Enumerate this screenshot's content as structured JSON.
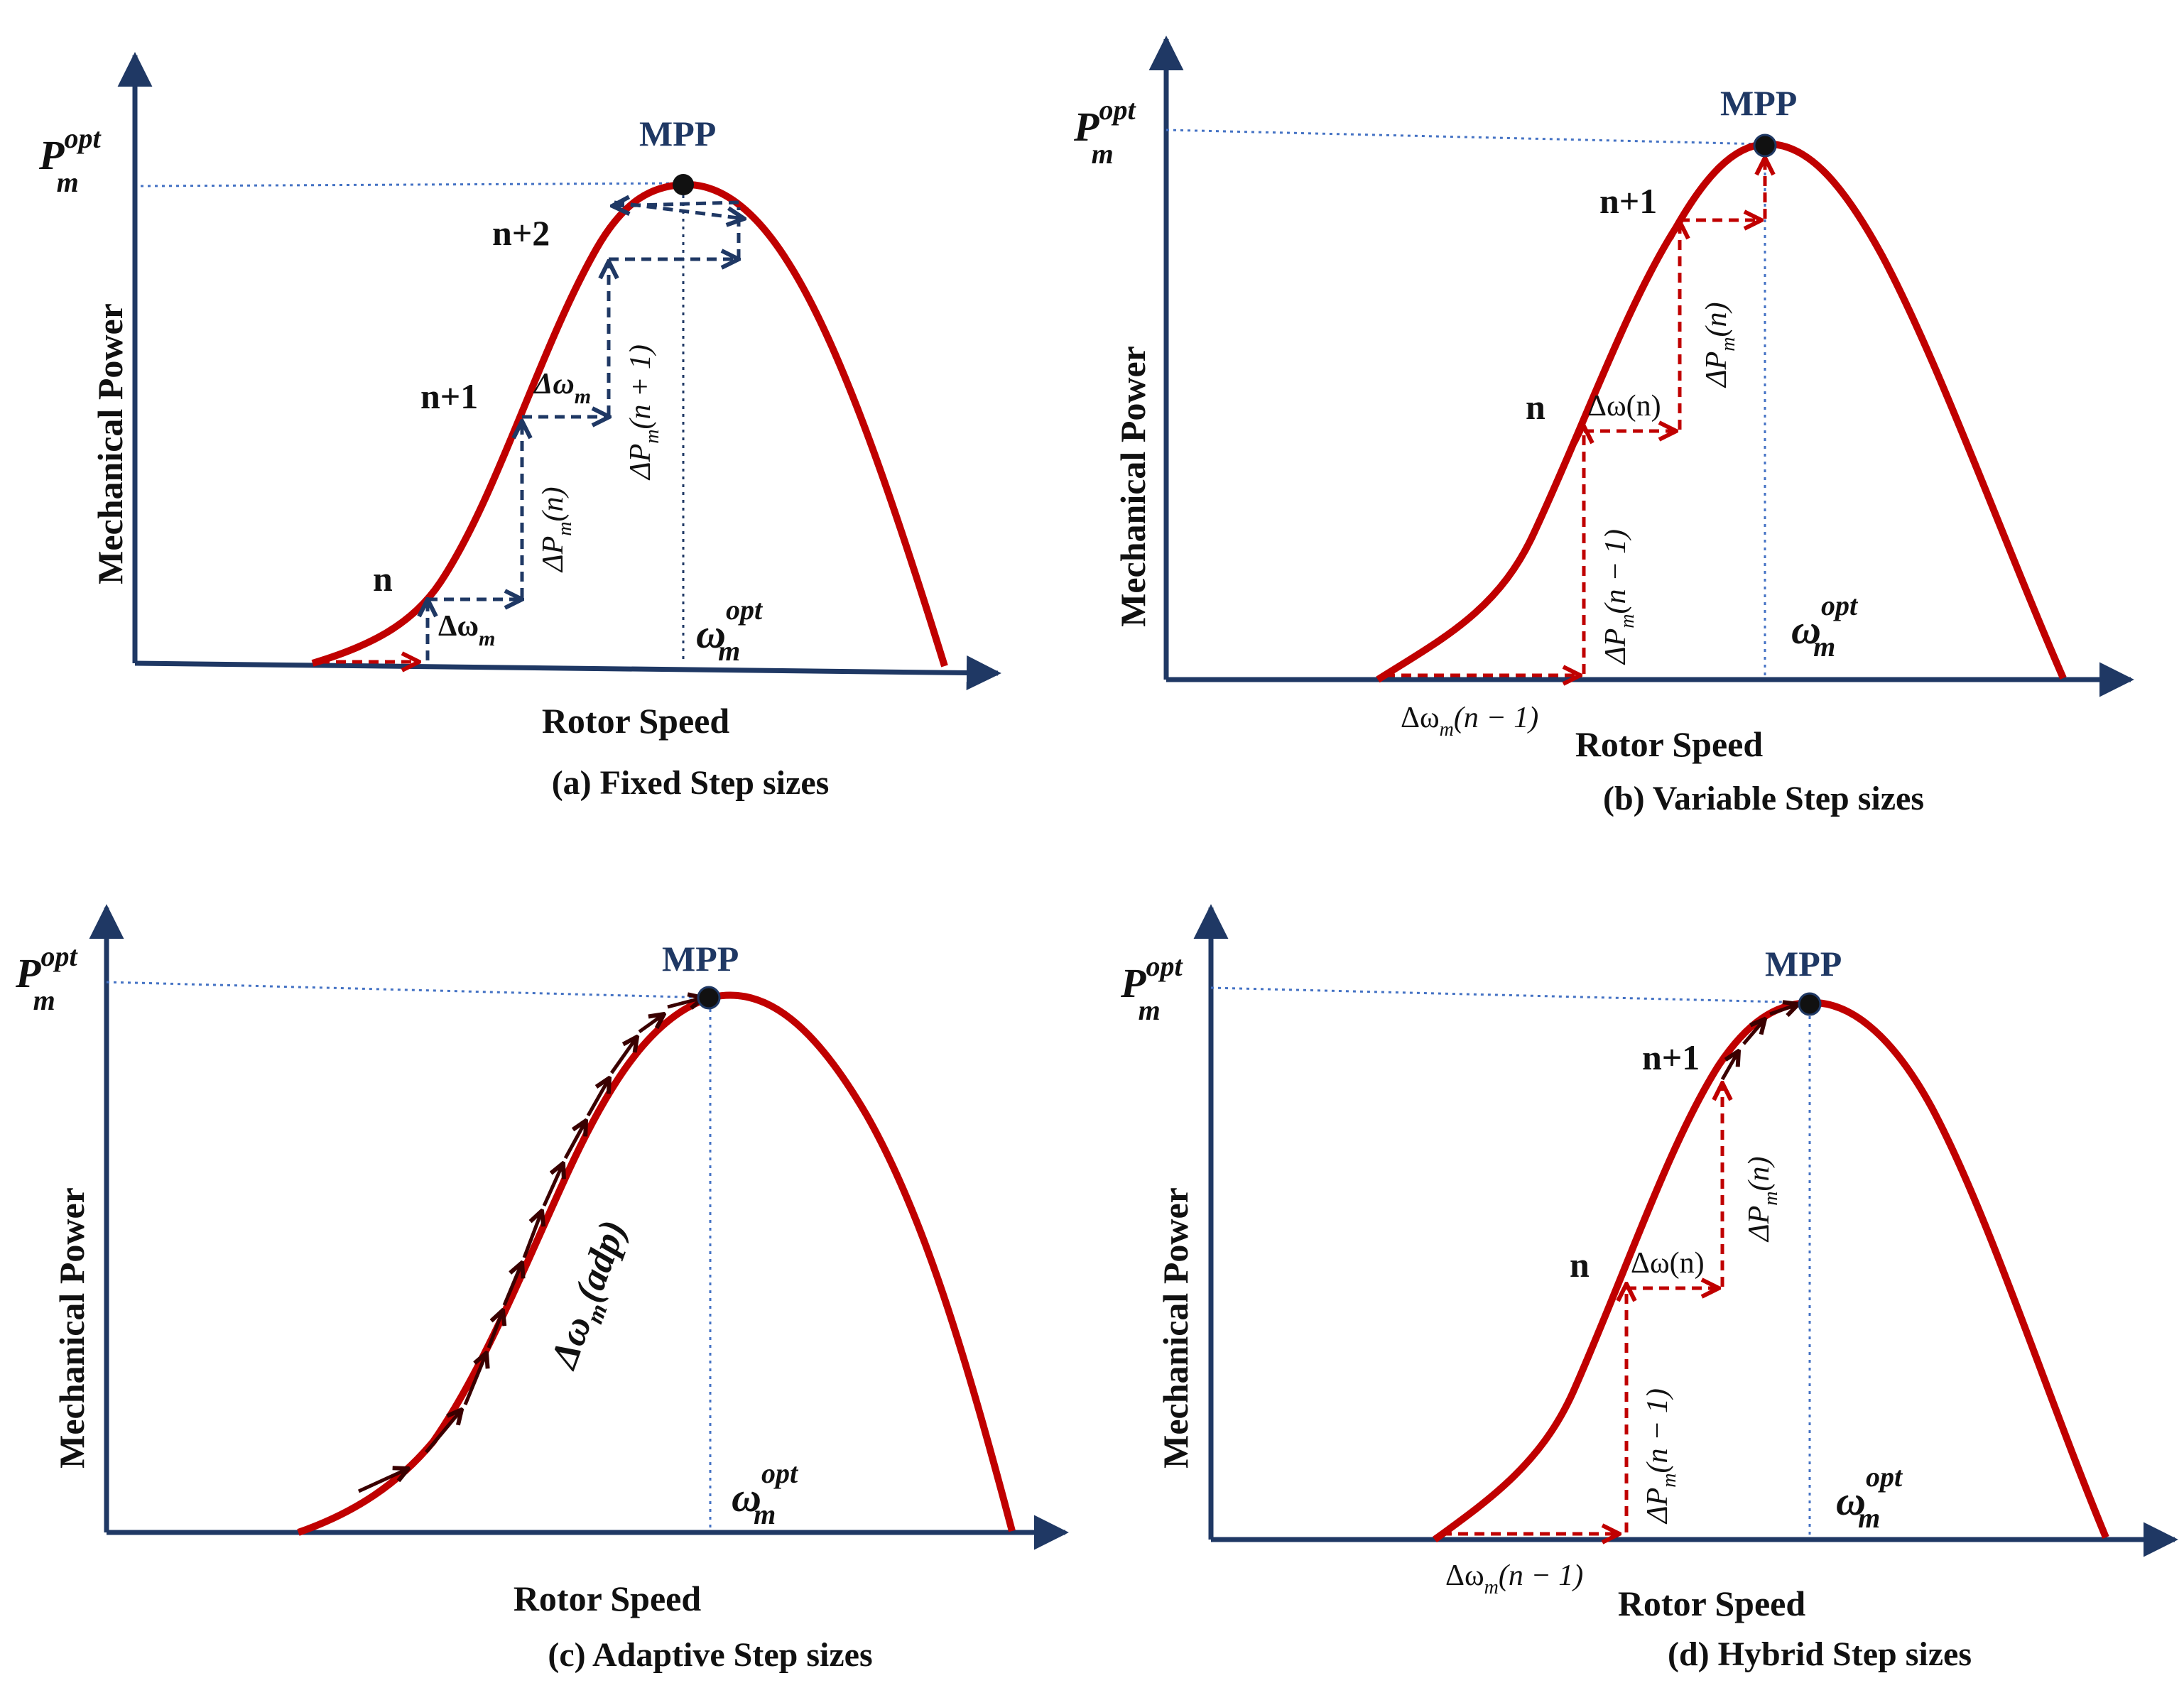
{
  "colors": {
    "axis": "#1f3864",
    "curve": "#c00000",
    "blue_arrow": "#1f3864",
    "red_arrow": "#c00000",
    "guide": "#4472c4",
    "mpp_label": "#1f3864",
    "text": "#111111"
  },
  "panels": [
    {
      "id": "a",
      "caption": "(a) Fixed Step sizes",
      "y_axis_label": "Mechanical Power",
      "x_axis_label": "Rotor Speed",
      "p_opt": {
        "base": "P",
        "sub": "m",
        "sup": "opt"
      },
      "w_opt": {
        "base": "ω",
        "sub": "m",
        "sup": "opt"
      },
      "mpp_label": "MPP",
      "step_labels": [
        "n",
        "n+1",
        "n+2"
      ],
      "annotations": [
        "Δω",
        "m",
        "Δω",
        "m",
        "ΔP",
        "m",
        "(n)",
        "ΔP",
        "m",
        "(n + 1)"
      ]
    },
    {
      "id": "b",
      "caption": "(b) Variable Step sizes",
      "y_axis_label": "Mechanical Power",
      "x_axis_label": "Rotor Speed",
      "p_opt": {
        "base": "P",
        "sub": "m",
        "sup": "opt"
      },
      "w_opt": {
        "base": "ω",
        "sub": "m",
        "sup": "opt"
      },
      "mpp_label": "MPP",
      "step_labels": [
        "n",
        "n+1"
      ],
      "annotations": [
        "Δω",
        "m",
        "(n − 1)",
        "Δω(n)",
        "ΔP",
        "m",
        "(n − 1)",
        "ΔP",
        "m",
        "(n)"
      ]
    },
    {
      "id": "c",
      "caption": "(c) Adaptive Step sizes",
      "y_axis_label": "Mechanical Power",
      "x_axis_label": "Rotor Speed",
      "p_opt": {
        "base": "P",
        "sub": "m",
        "sup": "opt"
      },
      "w_opt": {
        "base": "ω",
        "sub": "m",
        "sup": "opt"
      },
      "mpp_label": "MPP",
      "step_labels": [],
      "annotations": [
        "Δω",
        "m",
        "(adp)"
      ]
    },
    {
      "id": "d",
      "caption": "(d) Hybrid Step sizes",
      "y_axis_label": "Mechanical Power",
      "x_axis_label": "Rotor Speed",
      "p_opt": {
        "base": "P",
        "sub": "m",
        "sup": "opt"
      },
      "w_opt": {
        "base": "ω",
        "sub": "m",
        "sup": "opt"
      },
      "mpp_label": "MPP",
      "step_labels": [
        "n",
        "n+1"
      ],
      "annotations": [
        "Δω",
        "m",
        "(n − 1)",
        "Δω(n)",
        "ΔP",
        "m",
        "(n − 1)",
        "ΔP",
        "m",
        "(n)"
      ]
    }
  ]
}
